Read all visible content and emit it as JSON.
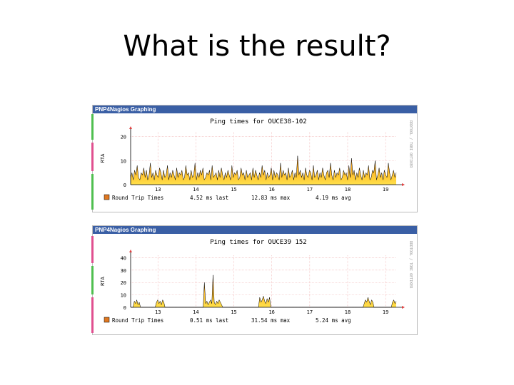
{
  "slide": {
    "title": "What is the result?"
  },
  "colors": {
    "header_bg": "#3a5fa5",
    "fill_top": "#ff8c00",
    "fill_bottom": "#ffe04a",
    "line": "#000000",
    "legend_swatch": "#e07820",
    "strip_green": "#4fbf4f",
    "strip_pink": "#e04f8f"
  },
  "chart_data": [
    {
      "type": "area",
      "header": "PNP4Nagios Graphing",
      "title": "Ping times for OUCE38-102",
      "ylabel": "RTA",
      "side_text": "RRDTOOL / TOBI OETIKER",
      "xticks": [
        "13",
        "14",
        "15",
        "16",
        "17",
        "18",
        "19"
      ],
      "yticks": [
        "0",
        "10",
        "20"
      ],
      "ylim": [
        0,
        22
      ],
      "legend": {
        "label": "Round Trip Times",
        "last": "4.52 ms last",
        "max": "12.83 ms max",
        "avg": "4.19 ms avg"
      },
      "series": [
        {
          "name": "Round Trip Times",
          "values": [
            3,
            5,
            2,
            6,
            4,
            8,
            3,
            2,
            5,
            4,
            7,
            3,
            6,
            2,
            4,
            9,
            3,
            5,
            2,
            6,
            4,
            3,
            7,
            5,
            2,
            6,
            3,
            4,
            8,
            2,
            5,
            3,
            6,
            4,
            2,
            7,
            3,
            5,
            4,
            6,
            2,
            3,
            8,
            4,
            5,
            2,
            6,
            3,
            4,
            9,
            2,
            5,
            3,
            6,
            4,
            7,
            2,
            3,
            5,
            4,
            6,
            2,
            8,
            3,
            4,
            5,
            2,
            6,
            3,
            7,
            4,
            2,
            5,
            3,
            6,
            4,
            2,
            8,
            3,
            5,
            4,
            6,
            2,
            3,
            7,
            4,
            5,
            2,
            6,
            3,
            4,
            5,
            2,
            7,
            3,
            6,
            4,
            2,
            5,
            3,
            8,
            4,
            6,
            2,
            5,
            3,
            4,
            7,
            2,
            6,
            3,
            5,
            4,
            2,
            9,
            3,
            6,
            4,
            5,
            2,
            7,
            3,
            4,
            6,
            2,
            5,
            3,
            12,
            4,
            6,
            3,
            5,
            2,
            7,
            4,
            3,
            6,
            5,
            2,
            8,
            3,
            4,
            6,
            2,
            5,
            3,
            7,
            4,
            2,
            5,
            6,
            3,
            9,
            4,
            2,
            6,
            3,
            5,
            4,
            7,
            2,
            3,
            6,
            4,
            5,
            2,
            8,
            3,
            11,
            4,
            6,
            2,
            5,
            3,
            7,
            4,
            2,
            6,
            3,
            5,
            4,
            8,
            2,
            3,
            6,
            5,
            10,
            2,
            4,
            7,
            3,
            5,
            2,
            6,
            4,
            3,
            9,
            5,
            2,
            4,
            6,
            3,
            5
          ]
        }
      ]
    },
    {
      "type": "area",
      "header": "PNP4Nagios Graphing",
      "title": "Ping times for OUCE39 152",
      "ylabel": "RTA",
      "side_text": "RRDTOOL / TOBI OETIKER",
      "xticks": [
        "13",
        "14",
        "15",
        "16",
        "17",
        "18",
        "19"
      ],
      "yticks": [
        "0",
        "10",
        "20",
        "30",
        "40"
      ],
      "ylim": [
        0,
        42
      ],
      "legend": {
        "label": "Round Trip Times",
        "last": "0.51 ms last",
        "max": "31.54 ms max",
        "avg": "5.24 ms avg"
      },
      "series": [
        {
          "name": "Round Trip Times",
          "values": [
            0,
            0,
            0,
            5,
            3,
            6,
            2,
            4,
            0,
            0,
            0,
            0,
            0,
            0,
            0,
            0,
            0,
            0,
            0,
            0,
            0,
            4,
            6,
            3,
            5,
            2,
            6,
            4,
            0,
            0,
            0,
            0,
            0,
            0,
            0,
            0,
            0,
            0,
            0,
            0,
            0,
            0,
            0,
            0,
            0,
            0,
            0,
            0,
            0,
            0,
            0,
            0,
            0,
            0,
            0,
            0,
            0,
            0,
            0,
            0,
            20,
            3,
            5,
            2,
            4,
            6,
            3,
            26,
            4,
            2,
            5,
            3,
            6,
            4,
            2,
            0,
            0,
            0,
            0,
            0,
            0,
            0,
            0,
            0,
            0,
            0,
            0,
            0,
            0,
            0,
            0,
            0,
            0,
            0,
            0,
            0,
            0,
            0,
            0,
            0,
            0,
            0,
            0,
            0,
            0,
            8,
            4,
            6,
            9,
            5,
            3,
            7,
            4,
            8,
            0,
            0,
            0,
            0,
            0,
            0,
            0,
            0,
            0,
            0,
            0,
            0,
            0,
            0,
            0,
            0,
            0,
            0,
            0,
            0,
            0,
            0,
            0,
            0,
            0,
            0,
            0,
            0,
            0,
            0,
            0,
            0,
            0,
            0,
            0,
            0,
            0,
            0,
            0,
            0,
            0,
            0,
            0,
            0,
            0,
            0,
            0,
            0,
            0,
            0,
            0,
            0,
            0,
            0,
            0,
            0,
            0,
            0,
            0,
            0,
            0,
            0,
            0,
            0,
            0,
            0,
            0,
            0,
            0,
            0,
            0,
            0,
            0,
            0,
            0,
            0,
            3,
            6,
            4,
            8,
            5,
            2,
            6,
            4,
            0,
            0,
            0,
            0,
            0,
            0,
            0,
            0,
            0,
            0,
            0,
            0,
            0,
            0,
            0,
            4,
            6,
            3,
            5
          ]
        }
      ]
    }
  ]
}
